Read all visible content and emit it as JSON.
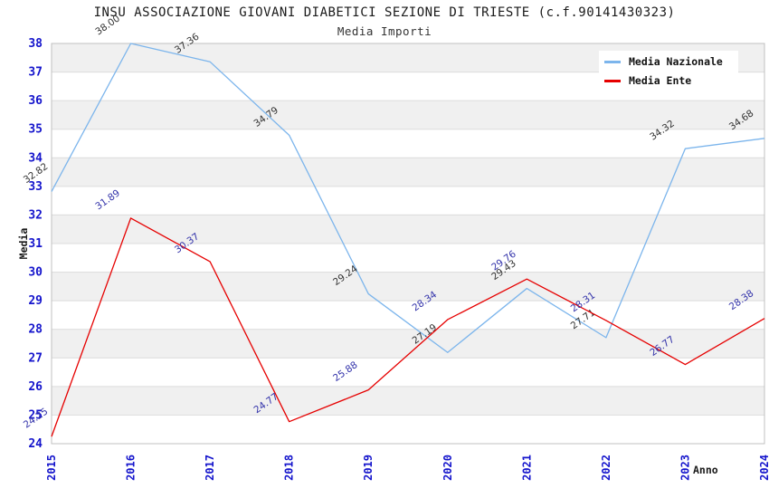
{
  "title": "INSU ASSOCIAZIONE GIOVANI DIABETICI SEZIONE DI TRIESTE (c.f.90141430323)",
  "subtitle": "Media Importi",
  "chart_data": {
    "type": "line",
    "title": "INSU ASSOCIAZIONE GIOVANI DIABETICI SEZIONE DI TRIESTE (c.f.90141430323)",
    "subtitle": "Media Importi",
    "xlabel": "Anno",
    "ylabel": "Media",
    "categories": [
      "2015",
      "2016",
      "2017",
      "2018",
      "2019",
      "2020",
      "2021",
      "2022",
      "2023",
      "2024"
    ],
    "series": [
      {
        "name": "Media Nazionale",
        "color": "#7cb5ec",
        "label_color": "#333333",
        "values": [
          32.82,
          38.0,
          37.36,
          34.79,
          29.24,
          27.19,
          29.43,
          27.71,
          34.32,
          34.68
        ]
      },
      {
        "name": "Media Ente",
        "color": "#e60000",
        "label_color": "#3333aa",
        "values": [
          24.25,
          31.89,
          30.37,
          24.77,
          25.88,
          28.34,
          29.76,
          28.31,
          26.77,
          28.38
        ]
      }
    ],
    "ylim": [
      24,
      38
    ],
    "ytick_step": 1,
    "grid": true,
    "band_fill_on": true,
    "legend_position": "top-right",
    "style": {
      "tick_label_color": "#1414cc",
      "band_color": "#f0f0f0",
      "grid_color": "#dcdcdc",
      "border_color": "#c0c0c0",
      "background": "#ffffff"
    }
  }
}
